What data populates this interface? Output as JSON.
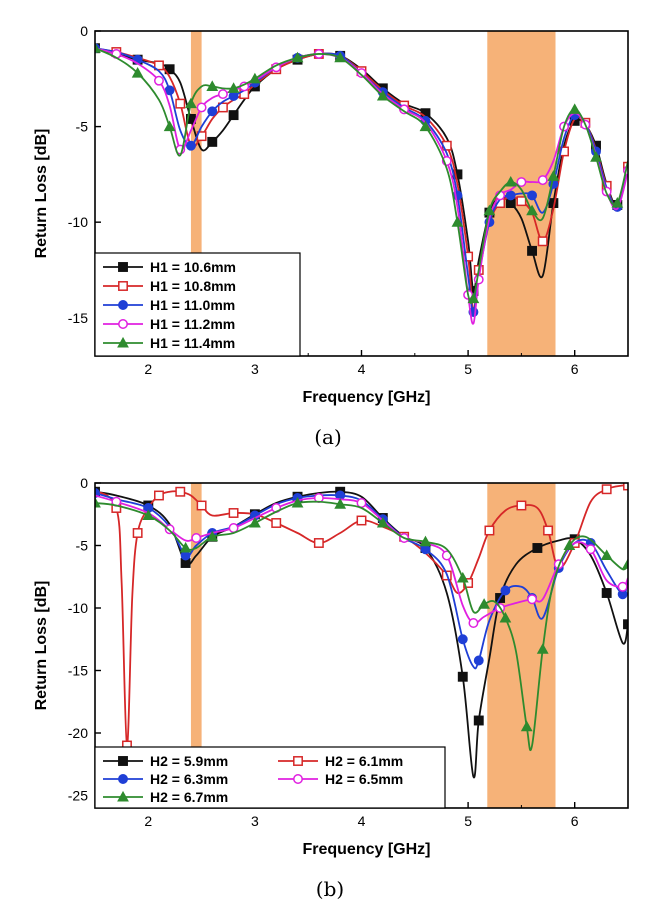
{
  "figure": {
    "captions": [
      "(a)",
      "(b)"
    ]
  },
  "chart_data": [
    {
      "type": "line",
      "panel_label": "(a)",
      "xlabel": "Frequency [GHz]",
      "ylabel": "Return Loss [dB]",
      "xlim": [
        1.5,
        6.5
      ],
      "ylim": [
        -17,
        0
      ],
      "xticks": [
        2,
        3,
        4,
        5,
        6
      ],
      "xtick_labels": [
        "2",
        "3",
        "4",
        "5",
        "6"
      ],
      "yticks": [
        0,
        -5,
        -10,
        -15
      ],
      "ytick_labels": [
        "0",
        "-5",
        "-10",
        "-15"
      ],
      "grid": false,
      "legend_position": "bottom-left",
      "legend_columns": 1,
      "shaded_bands": [
        {
          "x0": 2.4,
          "x1": 2.5,
          "color": "#F4A460"
        },
        {
          "x0": 5.18,
          "x1": 5.82,
          "color": "#F4A460"
        }
      ],
      "series": [
        {
          "name": "H1 = 10.6mm",
          "color": "#111111",
          "marker": "square-filled",
          "x": [
            1.5,
            1.7,
            1.9,
            2.1,
            2.2,
            2.3,
            2.4,
            2.5,
            2.6,
            2.7,
            2.8,
            2.9,
            3.0,
            3.2,
            3.4,
            3.6,
            3.8,
            4.0,
            4.2,
            4.4,
            4.6,
            4.8,
            4.9,
            5.0,
            5.05,
            5.1,
            5.2,
            5.3,
            5.4,
            5.5,
            5.6,
            5.7,
            5.8,
            5.9,
            6.0,
            6.1,
            6.2,
            6.3,
            6.4,
            6.5
          ],
          "y": [
            -0.9,
            -1.2,
            -1.5,
            -1.7,
            -2.0,
            -2.7,
            -4.6,
            -6.2,
            -5.8,
            -5.2,
            -4.4,
            -3.6,
            -2.9,
            -2.0,
            -1.5,
            -1.2,
            -1.3,
            -2.0,
            -3.0,
            -3.8,
            -4.3,
            -5.6,
            -7.5,
            -11.0,
            -13.6,
            -12.0,
            -9.5,
            -8.7,
            -9.0,
            -9.8,
            -11.5,
            -12.8,
            -9.0,
            -6.0,
            -4.7,
            -4.9,
            -6.0,
            -8.0,
            -9.1,
            -7.0
          ]
        },
        {
          "name": "H1 = 10.8mm",
          "color": "#d62728",
          "marker": "square-open",
          "x": [
            1.5,
            1.7,
            1.9,
            2.1,
            2.2,
            2.3,
            2.4,
            2.5,
            2.6,
            2.7,
            2.8,
            2.9,
            3.0,
            3.2,
            3.4,
            3.6,
            3.8,
            4.0,
            4.2,
            4.4,
            4.6,
            4.8,
            4.9,
            5.0,
            5.05,
            5.1,
            5.2,
            5.3,
            5.4,
            5.5,
            5.6,
            5.7,
            5.8,
            5.9,
            6.0,
            6.1,
            6.2,
            6.3,
            6.4,
            6.5
          ],
          "y": [
            -0.9,
            -1.1,
            -1.4,
            -1.8,
            -2.4,
            -3.8,
            -6.0,
            -5.5,
            -4.6,
            -4.0,
            -3.6,
            -3.3,
            -2.8,
            -2.0,
            -1.5,
            -1.2,
            -1.3,
            -2.1,
            -3.1,
            -3.9,
            -4.5,
            -6.0,
            -8.0,
            -11.8,
            -14.6,
            -12.5,
            -10.0,
            -9.0,
            -8.7,
            -8.9,
            -9.5,
            -11.0,
            -9.3,
            -6.3,
            -4.6,
            -4.8,
            -6.2,
            -8.1,
            -9.2,
            -7.1
          ]
        },
        {
          "name": "H1 = 11.0mm",
          "color": "#1f3fd6",
          "marker": "circle-filled",
          "x": [
            1.5,
            1.7,
            1.9,
            2.1,
            2.2,
            2.3,
            2.4,
            2.5,
            2.6,
            2.7,
            2.8,
            2.9,
            3.0,
            3.2,
            3.4,
            3.6,
            3.8,
            4.0,
            4.2,
            4.4,
            4.6,
            4.8,
            4.9,
            5.0,
            5.05,
            5.1,
            5.2,
            5.3,
            5.4,
            5.5,
            5.6,
            5.7,
            5.8,
            5.9,
            6.0,
            6.1,
            6.2,
            6.3,
            6.4,
            6.5
          ],
          "y": [
            -0.9,
            -1.1,
            -1.5,
            -2.1,
            -3.1,
            -5.2,
            -6.0,
            -5.0,
            -4.2,
            -3.7,
            -3.4,
            -3.1,
            -2.7,
            -1.9,
            -1.4,
            -1.2,
            -1.3,
            -2.2,
            -3.2,
            -4.0,
            -4.7,
            -6.4,
            -8.6,
            -12.8,
            -14.7,
            -12.8,
            -10.0,
            -8.8,
            -8.6,
            -8.5,
            -8.6,
            -9.5,
            -8.0,
            -5.6,
            -4.4,
            -4.8,
            -6.3,
            -8.2,
            -9.2,
            -7.2
          ]
        },
        {
          "name": "H1 = 11.2mm",
          "color": "#e020e0",
          "marker": "circle-open",
          "x": [
            1.5,
            1.7,
            1.9,
            2.1,
            2.2,
            2.3,
            2.4,
            2.5,
            2.6,
            2.7,
            2.8,
            2.9,
            3.0,
            3.2,
            3.4,
            3.6,
            3.8,
            4.0,
            4.2,
            4.4,
            4.6,
            4.8,
            4.9,
            5.0,
            5.05,
            5.1,
            5.2,
            5.3,
            5.4,
            5.5,
            5.6,
            5.7,
            5.8,
            5.9,
            6.0,
            6.1,
            6.2,
            6.3,
            6.4,
            6.5
          ],
          "y": [
            -0.9,
            -1.2,
            -1.7,
            -2.6,
            -3.9,
            -6.2,
            -5.2,
            -4.0,
            -3.5,
            -3.3,
            -3.1,
            -2.9,
            -2.6,
            -1.9,
            -1.4,
            -1.2,
            -1.4,
            -2.2,
            -3.3,
            -4.1,
            -4.8,
            -6.8,
            -9.2,
            -13.8,
            -15.3,
            -13.0,
            -9.8,
            -8.6,
            -8.3,
            -7.9,
            -7.9,
            -7.8,
            -6.8,
            -5.0,
            -4.3,
            -4.9,
            -6.5,
            -8.4,
            -9.3,
            -7.3
          ]
        },
        {
          "name": "H1 = 11.4mm",
          "color": "#2e8b2e",
          "marker": "triangle-filled",
          "x": [
            1.5,
            1.7,
            1.9,
            2.1,
            2.2,
            2.3,
            2.4,
            2.5,
            2.6,
            2.7,
            2.8,
            2.9,
            3.0,
            3.2,
            3.4,
            3.6,
            3.8,
            4.0,
            4.2,
            4.4,
            4.6,
            4.8,
            4.9,
            5.0,
            5.05,
            5.1,
            5.2,
            5.3,
            5.4,
            5.5,
            5.6,
            5.7,
            5.8,
            5.9,
            6.0,
            6.1,
            6.2,
            6.3,
            6.4,
            6.5
          ],
          "y": [
            -0.9,
            -1.4,
            -2.2,
            -3.6,
            -5.0,
            -6.5,
            -3.8,
            -2.9,
            -2.9,
            -3.0,
            -3.0,
            -2.8,
            -2.5,
            -1.8,
            -1.4,
            -1.2,
            -1.4,
            -2.3,
            -3.4,
            -4.2,
            -5.0,
            -7.2,
            -10.0,
            -13.8,
            -14.0,
            -12.5,
            -9.4,
            -8.4,
            -7.9,
            -8.3,
            -9.4,
            -9.8,
            -7.6,
            -5.0,
            -4.1,
            -4.9,
            -6.6,
            -8.5,
            -9.0,
            -6.8
          ]
        }
      ]
    },
    {
      "type": "line",
      "panel_label": "(b)",
      "xlabel": "Frequency [GHz]",
      "ylabel": "Return Loss [dB]",
      "xlim": [
        1.5,
        6.5
      ],
      "ylim": [
        -26,
        0
      ],
      "xticks": [
        2,
        3,
        4,
        5,
        6
      ],
      "xtick_labels": [
        "2",
        "3",
        "4",
        "5",
        "6"
      ],
      "yticks": [
        0,
        -5,
        -10,
        -15,
        -20,
        -25
      ],
      "ytick_labels": [
        "0",
        "-5",
        "-10",
        "-15",
        "-20",
        "-25"
      ],
      "grid": false,
      "legend_position": "bottom-left",
      "legend_columns": 2,
      "shaded_bands": [
        {
          "x0": 2.4,
          "x1": 2.5,
          "color": "#F4A460"
        },
        {
          "x0": 5.18,
          "x1": 5.82,
          "color": "#F4A460"
        }
      ],
      "series": [
        {
          "name": "H2 = 5.9mm",
          "color": "#111111",
          "marker": "square-filled",
          "x": [
            1.5,
            1.7,
            2.0,
            2.2,
            2.35,
            2.45,
            2.6,
            2.8,
            3.0,
            3.2,
            3.4,
            3.6,
            3.8,
            4.0,
            4.2,
            4.4,
            4.6,
            4.8,
            4.95,
            5.05,
            5.1,
            5.2,
            5.3,
            5.45,
            5.65,
            5.85,
            6.0,
            6.15,
            6.3,
            6.45,
            6.5
          ],
          "y": [
            -0.7,
            -1.0,
            -1.8,
            -3.3,
            -6.4,
            -5.8,
            -4.3,
            -3.5,
            -2.5,
            -1.6,
            -1.1,
            -0.8,
            -0.7,
            -1.1,
            -2.8,
            -4.3,
            -5.2,
            -8.8,
            -15.5,
            -23.5,
            -19.0,
            -14.0,
            -9.2,
            -6.5,
            -5.2,
            -4.6,
            -4.5,
            -5.8,
            -8.8,
            -12.8,
            -11.3
          ]
        },
        {
          "name": "H2 = 6.1mm",
          "color": "#d62728",
          "marker": "square-open",
          "x": [
            1.5,
            1.7,
            1.75,
            1.8,
            1.85,
            1.9,
            2.0,
            2.1,
            2.2,
            2.3,
            2.4,
            2.5,
            2.6,
            2.8,
            3.0,
            3.2,
            3.4,
            3.6,
            3.8,
            4.0,
            4.2,
            4.4,
            4.6,
            4.8,
            4.9,
            5.0,
            5.1,
            5.2,
            5.35,
            5.5,
            5.65,
            5.75,
            5.85,
            6.0,
            6.15,
            6.3,
            6.45,
            6.5
          ],
          "y": [
            -0.6,
            -2.0,
            -8.0,
            -21.0,
            -9.0,
            -4.0,
            -2.0,
            -1.0,
            -0.7,
            -0.7,
            -1.0,
            -1.8,
            -2.6,
            -2.4,
            -2.5,
            -3.2,
            -4.0,
            -4.8,
            -4.0,
            -3.0,
            -3.5,
            -4.3,
            -5.6,
            -7.4,
            -8.8,
            -8.0,
            -6.0,
            -3.8,
            -2.2,
            -1.8,
            -2.0,
            -3.8,
            -6.8,
            -4.8,
            -1.5,
            -0.5,
            -0.2,
            -0.2
          ]
        },
        {
          "name": "H2 = 6.3mm",
          "color": "#1f3fd6",
          "marker": "circle-filled",
          "x": [
            1.5,
            1.7,
            2.0,
            2.2,
            2.35,
            2.45,
            2.6,
            2.8,
            3.0,
            3.2,
            3.4,
            3.6,
            3.8,
            4.0,
            4.2,
            4.4,
            4.6,
            4.8,
            4.95,
            5.05,
            5.1,
            5.2,
            5.35,
            5.5,
            5.6,
            5.7,
            5.85,
            6.0,
            6.15,
            6.3,
            6.45,
            6.5
          ],
          "y": [
            -0.8,
            -1.3,
            -2.0,
            -3.5,
            -5.8,
            -5.0,
            -4.0,
            -3.5,
            -2.6,
            -1.7,
            -1.2,
            -1.0,
            -1.0,
            -1.4,
            -2.9,
            -4.4,
            -5.3,
            -7.3,
            -12.5,
            -14.7,
            -14.2,
            -11.0,
            -8.6,
            -8.3,
            -9.2,
            -10.8,
            -6.8,
            -4.8,
            -4.8,
            -7.0,
            -8.9,
            -7.8
          ]
        },
        {
          "name": "H2 = 6.5mm",
          "color": "#e020e0",
          "marker": "circle-open",
          "x": [
            1.5,
            1.7,
            2.0,
            2.2,
            2.35,
            2.45,
            2.6,
            2.8,
            3.0,
            3.2,
            3.4,
            3.6,
            3.8,
            4.0,
            4.2,
            4.4,
            4.6,
            4.8,
            4.95,
            5.05,
            5.15,
            5.3,
            5.45,
            5.6,
            5.7,
            5.85,
            6.0,
            6.15,
            6.3,
            6.45,
            6.5
          ],
          "y": [
            -1.0,
            -1.5,
            -2.4,
            -3.7,
            -4.6,
            -4.4,
            -4.0,
            -3.6,
            -2.8,
            -2.0,
            -1.4,
            -1.2,
            -1.3,
            -1.6,
            -3.0,
            -4.4,
            -4.8,
            -5.8,
            -9.8,
            -11.2,
            -10.7,
            -10.0,
            -9.6,
            -9.3,
            -9.3,
            -6.5,
            -4.8,
            -5.3,
            -7.8,
            -8.3,
            -7.6
          ]
        },
        {
          "name": "H2 = 6.7mm",
          "color": "#2e8b2e",
          "marker": "triangle-filled",
          "x": [
            1.5,
            1.7,
            2.0,
            2.2,
            2.35,
            2.45,
            2.6,
            2.8,
            3.0,
            3.2,
            3.4,
            3.6,
            3.8,
            4.0,
            4.2,
            4.4,
            4.6,
            4.8,
            4.95,
            5.05,
            5.15,
            5.25,
            5.35,
            5.45,
            5.55,
            5.6,
            5.7,
            5.8,
            5.95,
            6.1,
            6.3,
            6.45,
            6.5
          ],
          "y": [
            -1.6,
            -1.8,
            -2.6,
            -3.8,
            -5.2,
            -5.2,
            -4.3,
            -4.0,
            -3.2,
            -2.3,
            -1.6,
            -1.5,
            -1.7,
            -2.0,
            -3.2,
            -4.4,
            -4.7,
            -5.3,
            -7.6,
            -10.3,
            -9.7,
            -9.5,
            -10.8,
            -13.5,
            -19.5,
            -21.0,
            -13.3,
            -8.0,
            -5.0,
            -4.3,
            -5.8,
            -6.9,
            -6.5
          ]
        }
      ]
    }
  ]
}
